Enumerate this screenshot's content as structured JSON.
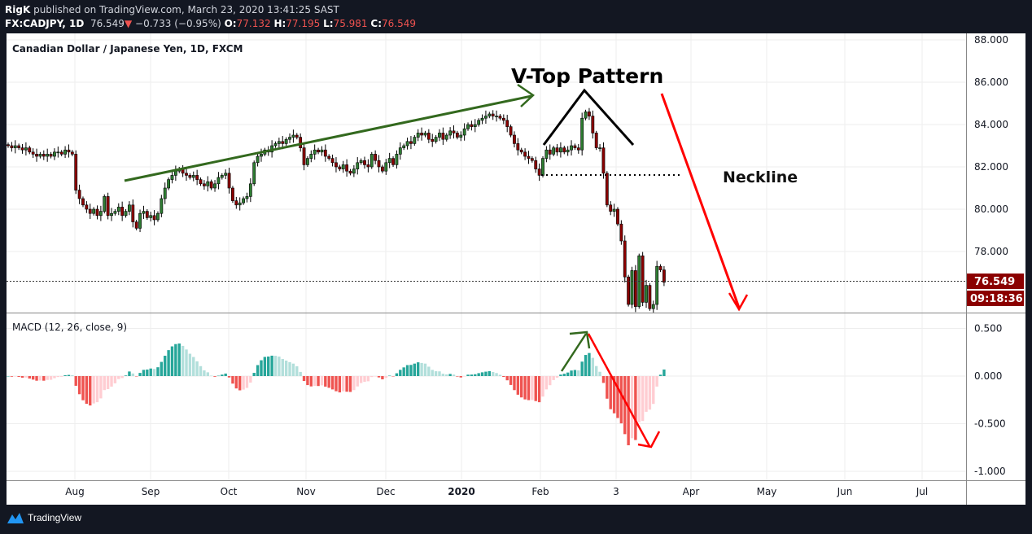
{
  "header": {
    "author": "RigK",
    "published": "published on TradingView.com, March 23, 2020 13:41:25 SAST",
    "symbol": "FX:CADJPY, 1D",
    "last": "76.549",
    "change": "−0.733 (−0.95%)",
    "o_label": "O:",
    "o": "77.132",
    "h_label": "H:",
    "h": "77.195",
    "l_label": "L:",
    "l": "75.981",
    "c_label": "C:",
    "c": "76.549"
  },
  "legend": {
    "title": "Canadian Dollar / Japanese Yen, 1D, FXCM",
    "macd": "MACD (12, 26, close, 9)"
  },
  "price_label": "76.549",
  "countdown": "09:18:36",
  "annotations": {
    "vtop": "V-Top Pattern",
    "neckline": "Neckline"
  },
  "footer": {
    "brand": "TradingView"
  },
  "colors": {
    "up": "#2e7d32",
    "down": "#8b0000",
    "accent_red": "#ff0000",
    "trend_green": "#33691e",
    "hist_up": "#26a69a",
    "hist_up_fade": "#b2dfdb",
    "hist_down": "#ef5350",
    "hist_down_fade": "#ffcdd2",
    "price_box": "#8b0000"
  },
  "chart_data": {
    "type": "candlestick",
    "symbol": "CADJPY",
    "interval": "1D",
    "price_axis": {
      "ticks": [
        "88.000",
        "86.000",
        "84.000",
        "82.000",
        "80.000",
        "78.000"
      ],
      "range": [
        75.1,
        88.0
      ]
    },
    "macd_axis": {
      "ticks": [
        "0.500",
        "0.000",
        "-0.500",
        "-1.000"
      ],
      "range": [
        -1.1,
        0.65
      ]
    },
    "macd_params": {
      "fast": 12,
      "slow": 26,
      "source": "close",
      "signal": 9
    },
    "x_ticks": [
      "Aug",
      "Sep",
      "Oct",
      "Nov",
      "Dec",
      "2020",
      "Feb",
      "3",
      "Apr",
      "May",
      "Jun",
      "Jul"
    ],
    "closes": [
      83.0,
      82.9,
      83.0,
      82.9,
      82.8,
      82.9,
      82.7,
      82.6,
      82.5,
      82.6,
      82.5,
      82.6,
      82.5,
      82.7,
      82.7,
      82.6,
      82.8,
      82.7,
      82.6,
      80.9,
      80.5,
      80.2,
      80.0,
      79.8,
      80.0,
      79.7,
      79.9,
      80.6,
      79.7,
      79.8,
      79.9,
      80.1,
      79.7,
      79.9,
      80.2,
      79.4,
      79.1,
      79.8,
      79.9,
      79.6,
      79.7,
      79.5,
      79.8,
      80.5,
      81.0,
      81.4,
      81.6,
      81.8,
      81.9,
      81.7,
      81.6,
      81.5,
      81.6,
      81.4,
      81.2,
      81.1,
      81.3,
      81.0,
      81.2,
      81.5,
      81.6,
      81.7,
      81.0,
      80.4,
      80.2,
      80.3,
      80.5,
      80.6,
      81.2,
      82.2,
      82.5,
      82.6,
      82.8,
      82.7,
      83.0,
      83.1,
      83.2,
      83.1,
      83.3,
      83.4,
      83.5,
      83.4,
      82.9,
      82.1,
      82.4,
      82.6,
      82.8,
      82.7,
      82.8,
      82.5,
      82.4,
      82.2,
      82.0,
      81.9,
      82.1,
      81.8,
      81.7,
      81.9,
      82.2,
      82.3,
      82.1,
      82.0,
      82.6,
      82.3,
      82.0,
      81.8,
      82.2,
      82.4,
      82.1,
      82.6,
      82.9,
      83.0,
      83.2,
      83.1,
      83.4,
      83.6,
      83.5,
      83.6,
      83.3,
      83.2,
      83.4,
      83.6,
      83.3,
      83.5,
      83.7,
      83.6,
      83.4,
      83.5,
      83.8,
      84.0,
      83.9,
      84.0,
      84.2,
      84.3,
      84.4,
      84.5,
      84.4,
      84.4,
      84.3,
      84.2,
      83.9,
      83.5,
      83.1,
      82.8,
      82.7,
      82.5,
      82.4,
      82.3,
      81.9,
      81.6,
      82.4,
      82.8,
      82.6,
      82.9,
      82.7,
      82.9,
      82.7,
      82.8,
      83.0,
      82.9,
      82.8,
      84.3,
      84.6,
      84.4,
      83.6,
      82.9,
      82.9,
      81.7,
      80.2,
      79.9,
      80.0,
      79.3,
      78.5,
      76.8,
      75.5,
      77.1,
      75.4,
      77.8,
      75.6,
      76.4,
      75.3,
      75.5,
      77.3,
      77.132,
      76.549
    ],
    "last_price": 76.549,
    "neckline": 81.6
  }
}
